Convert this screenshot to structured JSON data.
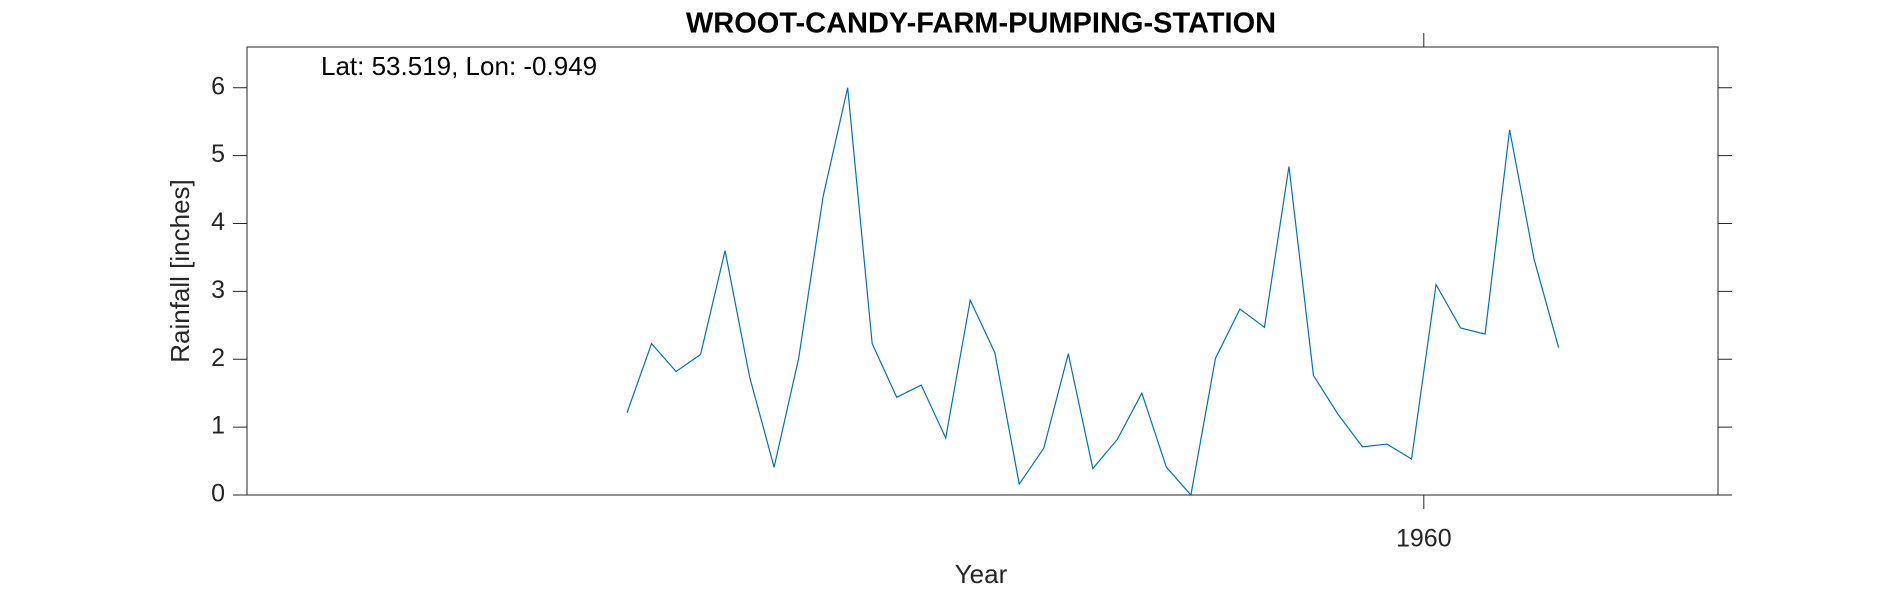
{
  "chart_data": {
    "type": "line",
    "title": "WROOT-CANDY-FARM-PUMPING-STATION",
    "annotation": "Lat: 53.519, Lon: -0.949",
    "x_label": "Year",
    "y_label": "Rainfall [inches]",
    "x": [
      1927.5,
      1928.5,
      1929.5,
      1930.5,
      1931.5,
      1932.5,
      1933.5,
      1934.5,
      1935.5,
      1936.5,
      1937.5,
      1938.5,
      1939.5,
      1940.5,
      1941.5,
      1942.5,
      1943.5,
      1944.5,
      1945.5,
      1946.5,
      1947.5,
      1948.5,
      1949.5,
      1950.5,
      1951.5,
      1952.5,
      1953.5,
      1954.5,
      1955.5,
      1956.5,
      1957.5,
      1958.5,
      1959.5,
      1960.5,
      1961.5,
      1962.5,
      1963.5,
      1964.5,
      1965.5
    ],
    "series": [
      {
        "name": "Rainfall",
        "color": "#0072bd",
        "values": [
          1.21,
          2.23,
          1.82,
          2.07,
          3.6,
          1.74,
          0.41,
          2.01,
          4.4,
          6.0,
          2.23,
          1.44,
          1.62,
          0.84,
          2.87,
          2.1,
          0.16,
          0.69,
          2.08,
          0.39,
          0.82,
          1.5,
          0.41,
          0.0,
          2.01,
          2.74,
          2.47,
          4.84,
          1.76,
          1.19,
          0.71,
          0.75,
          0.53,
          3.1,
          2.46,
          2.37,
          5.38,
          3.47,
          2.17
        ]
      }
    ],
    "xlim": [
      1912,
      1972
    ],
    "xticks": [
      1960
    ],
    "ylim": [
      0,
      6.6
    ],
    "yticks": [
      0,
      1,
      2,
      3,
      4,
      5,
      6
    ],
    "grid": false
  }
}
